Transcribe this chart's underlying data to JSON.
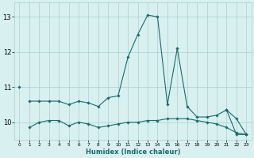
{
  "x": [
    0,
    1,
    2,
    3,
    4,
    5,
    6,
    7,
    8,
    9,
    10,
    11,
    12,
    13,
    14,
    15,
    16,
    17,
    18,
    19,
    20,
    21,
    22,
    23
  ],
  "line_peak": [
    null,
    10.6,
    10.6,
    10.6,
    10.6,
    10.5,
    10.6,
    10.55,
    10.45,
    10.7,
    10.75,
    11.85,
    12.5,
    13.05,
    13.0,
    10.5,
    12.1,
    10.45,
    10.15,
    10.15,
    10.2,
    10.35,
    9.65,
    9.65
  ],
  "line_diagonal": [
    11.0,
    null,
    null,
    null,
    null,
    null,
    null,
    null,
    null,
    null,
    null,
    null,
    null,
    null,
    null,
    null,
    null,
    null,
    null,
    null,
    null,
    10.35,
    10.1,
    9.65
  ],
  "line_flat": [
    null,
    9.85,
    10.0,
    10.05,
    10.05,
    9.9,
    10.0,
    9.95,
    9.85,
    9.9,
    9.95,
    10.0,
    10.0,
    10.05,
    10.05,
    10.1,
    10.1,
    10.1,
    10.05,
    10.0,
    9.95,
    9.85,
    9.7,
    9.65
  ],
  "bg_color": "#d8f0f0",
  "grid_color": "#aacfcf",
  "line_color": "#1a6b6b",
  "xlabel": "Humidex (Indice chaleur)",
  "ylim": [
    9.5,
    13.4
  ],
  "xlim": [
    -0.5,
    23.5
  ],
  "yticks": [
    10,
    11,
    12,
    13
  ],
  "xticks": [
    0,
    1,
    2,
    3,
    4,
    5,
    6,
    7,
    8,
    9,
    10,
    11,
    12,
    13,
    14,
    15,
    16,
    17,
    18,
    19,
    20,
    21,
    22,
    23
  ]
}
